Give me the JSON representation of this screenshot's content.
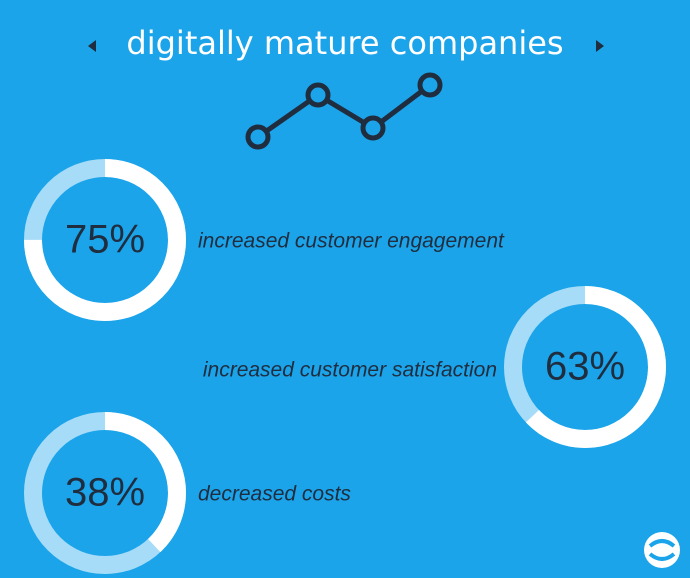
{
  "title": "digitally mature companies",
  "chart_data": [
    {
      "type": "donut",
      "values": [
        75
      ],
      "value_labels": [
        "75%"
      ],
      "label": "increased customer engagement",
      "color": "#ffffff",
      "track_color": "#a6dcf7",
      "side": "left"
    },
    {
      "type": "donut",
      "values": [
        63
      ],
      "value_labels": [
        "63%"
      ],
      "label": "increased customer satisfaction",
      "color": "#ffffff",
      "track_color": "#a6dcf7",
      "side": "right"
    },
    {
      "type": "donut",
      "values": [
        38
      ],
      "value_labels": [
        "38%"
      ],
      "label": "decreased costs",
      "color": "#ffffff",
      "track_color": "#a6dcf7",
      "side": "left"
    }
  ]
}
